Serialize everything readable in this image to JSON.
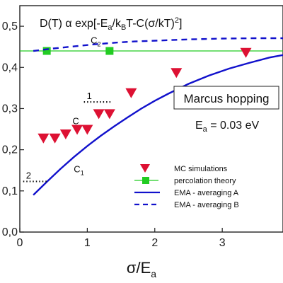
{
  "chart_data": {
    "type": "scatter",
    "title": "",
    "xlabel": "σ/E",
    "xlabel_sub": "a",
    "ylabel": "",
    "xlim": [
      0,
      3.9
    ],
    "ylim": [
      0,
      0.55
    ],
    "x_ticks": [
      0,
      1,
      2,
      3
    ],
    "y_ticks": [
      0.0,
      0.1,
      0.2,
      0.3,
      0.4,
      0.5
    ],
    "y_tick_labels": [
      "0,0",
      "0,1",
      "0,2",
      "0,3",
      "0,4",
      "0,5"
    ],
    "formula": {
      "lead": "D(T) α exp[-E",
      "sub1": "a",
      "mid1": "/k",
      "sub2": "B",
      "mid2": "T-C(σ/kT)",
      "sup": "2",
      "tail": "]"
    },
    "box_label": "Marcus hopping",
    "energy_text": {
      "lead": "E",
      "sub": "a",
      "tail": " = 0.03 eV"
    },
    "curve_labels": [
      {
        "text": "C",
        "sub": "2",
        "x": 1.05,
        "y": 0.458
      },
      {
        "text": "C",
        "sub": "",
        "x": 0.78,
        "y": 0.262
      },
      {
        "text": "C",
        "sub": "1",
        "x": 0.8,
        "y": 0.145
      }
    ],
    "dotted_markers": [
      {
        "label": "1",
        "x": 0.95,
        "y": 0.316,
        "len": 0.42
      },
      {
        "label": "2",
        "x": 0.05,
        "y": 0.123,
        "len": 0.36
      }
    ],
    "series": [
      {
        "name": "MC simulations",
        "kind": "marker-triangle",
        "color": "#dd1133",
        "x": [
          0.35,
          0.52,
          0.68,
          0.85,
          1.0,
          1.17,
          1.33,
          1.65,
          2.32,
          3.35
        ],
        "y": [
          0.229,
          0.229,
          0.239,
          0.25,
          0.25,
          0.288,
          0.288,
          0.339,
          0.388,
          0.437
        ]
      },
      {
        "name": "percolation theory",
        "kind": "line-marker-square",
        "color": "#22cc22",
        "x": [
          0.0,
          0.4,
          1.33,
          3.9
        ],
        "y": [
          0.44,
          0.44,
          0.44,
          0.44
        ],
        "marker_x": [
          0.4,
          1.33
        ],
        "marker_y": [
          0.44,
          0.44
        ]
      },
      {
        "name": "EMA - averaging A",
        "kind": "line-solid",
        "color": "#1111cc",
        "x": [
          0.2,
          0.4,
          0.6,
          0.8,
          1.0,
          1.2,
          1.4,
          1.6,
          1.8,
          2.0,
          2.2,
          2.5,
          2.8,
          3.1,
          3.4,
          3.7,
          3.9
        ],
        "y": [
          0.09,
          0.122,
          0.153,
          0.182,
          0.209,
          0.234,
          0.257,
          0.279,
          0.3,
          0.319,
          0.336,
          0.36,
          0.38,
          0.397,
          0.411,
          0.424,
          0.43
        ]
      },
      {
        "name": "EMA - averaging B",
        "kind": "line-dashed",
        "color": "#1111cc",
        "x": [
          0.2,
          0.5,
          0.8,
          1.1,
          1.4,
          1.7,
          2.0,
          2.5,
          3.0,
          3.5,
          3.9
        ],
        "y": [
          0.44,
          0.446,
          0.451,
          0.456,
          0.46,
          0.463,
          0.465,
          0.468,
          0.47,
          0.471,
          0.471
        ]
      }
    ],
    "legend": {
      "placement": "bottom-right",
      "entries": [
        "MC simulations",
        "percolation theory",
        "EMA - averaging A",
        "EMA - averaging B"
      ]
    },
    "grid": false
  }
}
